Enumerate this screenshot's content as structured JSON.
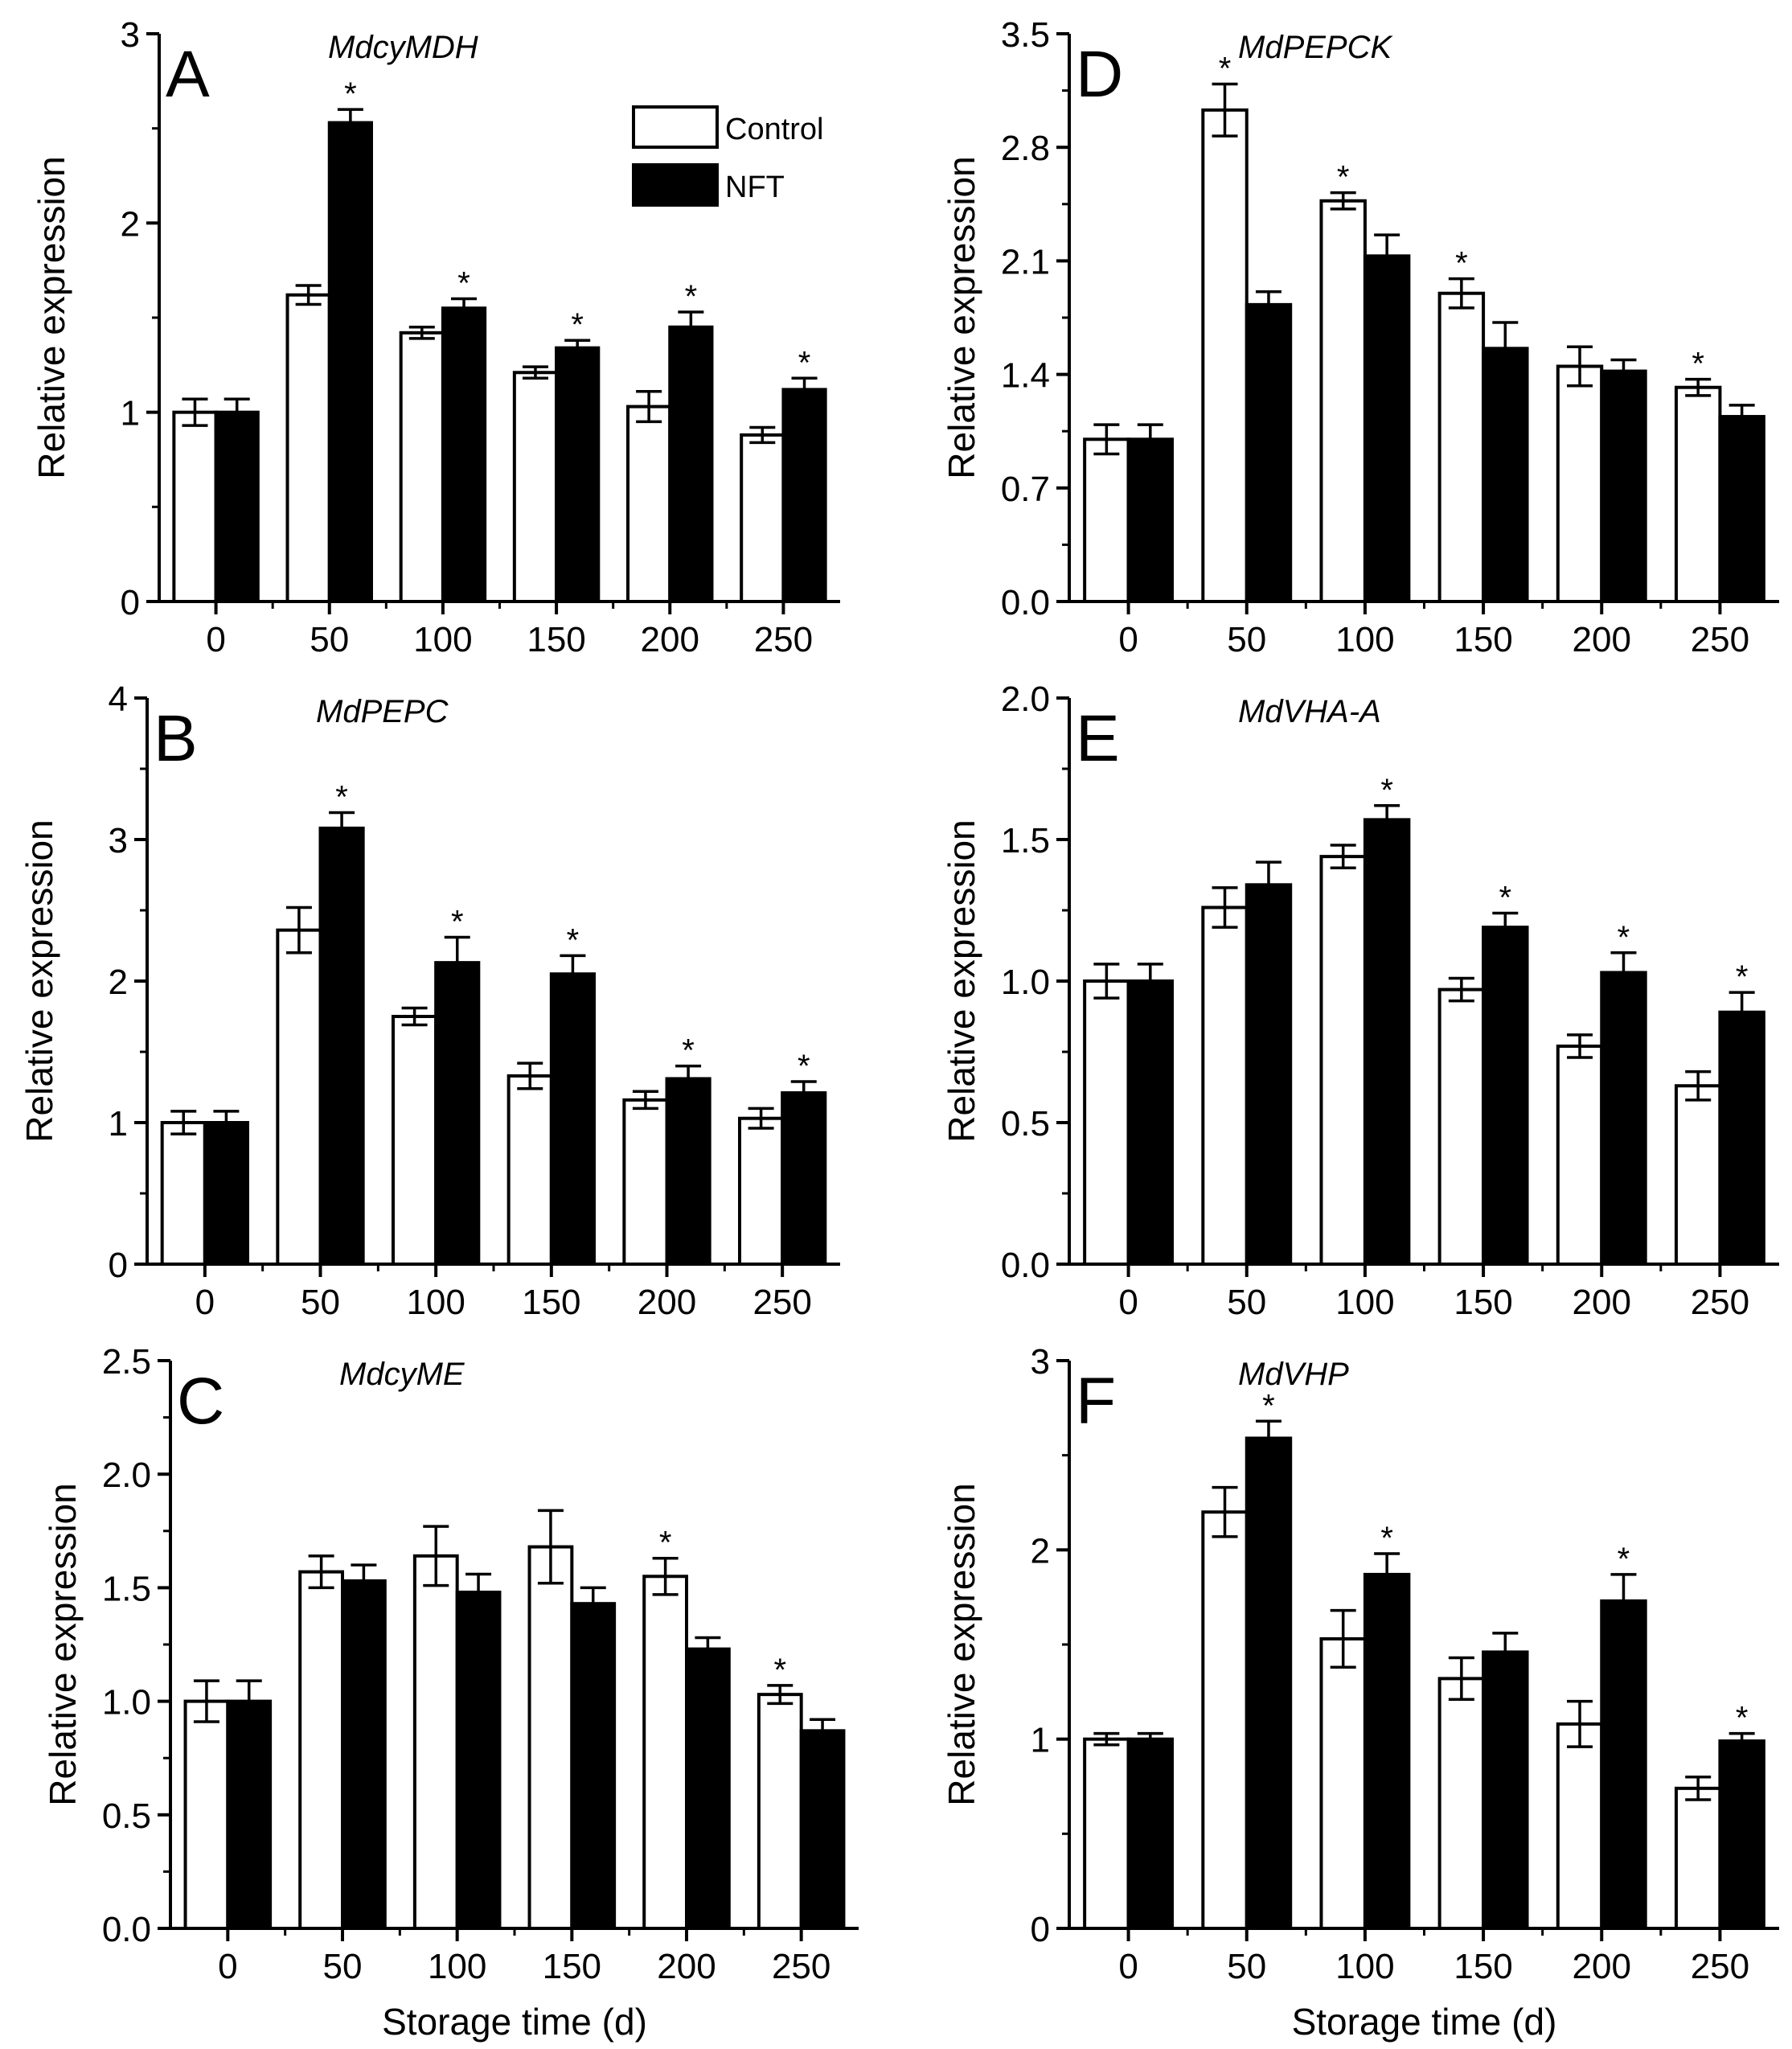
{
  "legend": {
    "control_label": "Control",
    "nft_label": "NFT"
  },
  "colors": {
    "control": "#ffffff",
    "nft": "#000000",
    "stroke": "#000000"
  },
  "chart_data": [
    {
      "type": "bar",
      "panel": "A",
      "title": "MdcyMDH",
      "xlabel": "",
      "ylabel": "Relative expression",
      "categories": [
        "0",
        "50",
        "100",
        "150",
        "200",
        "250"
      ],
      "ylim": [
        0,
        3
      ],
      "yticks": [
        "0",
        "1",
        "2",
        "3"
      ],
      "series": [
        {
          "name": "Control",
          "values": [
            1.0,
            1.62,
            1.42,
            1.21,
            1.03,
            0.88
          ],
          "errors": [
            0.07,
            0.05,
            0.03,
            0.03,
            0.08,
            0.04
          ],
          "significant": [
            false,
            false,
            false,
            false,
            false,
            false
          ]
        },
        {
          "name": "NFT",
          "values": [
            1.0,
            2.53,
            1.55,
            1.34,
            1.45,
            1.12
          ],
          "errors": [
            0.07,
            0.07,
            0.05,
            0.04,
            0.08,
            0.06
          ],
          "significant": [
            false,
            true,
            true,
            true,
            true,
            true
          ]
        }
      ]
    },
    {
      "type": "bar",
      "panel": "B",
      "title": "MdPEPC",
      "xlabel": "",
      "ylabel": "Relative expression",
      "categories": [
        "0",
        "50",
        "100",
        "150",
        "200",
        "250"
      ],
      "ylim": [
        0,
        4
      ],
      "yticks": [
        "0",
        "1",
        "2",
        "3",
        "4"
      ],
      "series": [
        {
          "name": "Control",
          "values": [
            1.0,
            2.36,
            1.75,
            1.33,
            1.16,
            1.03
          ],
          "errors": [
            0.08,
            0.16,
            0.06,
            0.09,
            0.06,
            0.07
          ],
          "significant": [
            false,
            false,
            false,
            false,
            false,
            false
          ]
        },
        {
          "name": "NFT",
          "values": [
            1.0,
            3.08,
            2.13,
            2.05,
            1.31,
            1.21
          ],
          "errors": [
            0.08,
            0.11,
            0.18,
            0.13,
            0.09,
            0.08
          ],
          "significant": [
            false,
            true,
            true,
            true,
            true,
            true
          ]
        }
      ]
    },
    {
      "type": "bar",
      "panel": "C",
      "title": "MdcyME",
      "xlabel": "Storage time (d)",
      "ylabel": "Relative expression",
      "categories": [
        "0",
        "50",
        "100",
        "150",
        "200",
        "250"
      ],
      "ylim": [
        0,
        2.5
      ],
      "yticks": [
        "0.0",
        "0.5",
        "1.0",
        "1.5",
        "2.0",
        "2.5"
      ],
      "series": [
        {
          "name": "Control",
          "values": [
            1.0,
            1.57,
            1.64,
            1.68,
            1.55,
            1.03
          ],
          "errors": [
            0.09,
            0.07,
            0.13,
            0.16,
            0.08,
            0.04
          ],
          "significant": [
            false,
            false,
            false,
            false,
            true,
            true
          ]
        },
        {
          "name": "NFT",
          "values": [
            1.0,
            1.53,
            1.48,
            1.43,
            1.23,
            0.87
          ],
          "errors": [
            0.09,
            0.07,
            0.08,
            0.07,
            0.05,
            0.05
          ],
          "significant": [
            false,
            false,
            false,
            false,
            false,
            false
          ]
        }
      ]
    },
    {
      "type": "bar",
      "panel": "D",
      "title": "MdPEPCK",
      "xlabel": "",
      "ylabel": "Relative expression",
      "categories": [
        "0",
        "50",
        "100",
        "150",
        "200",
        "250"
      ],
      "ylim": [
        0,
        3.5
      ],
      "yticks": [
        "0.0",
        "0.7",
        "1.4",
        "2.1",
        "2.8",
        "3.5"
      ],
      "series": [
        {
          "name": "Control",
          "values": [
            1.0,
            3.03,
            2.47,
            1.9,
            1.45,
            1.32
          ],
          "errors": [
            0.09,
            0.16,
            0.05,
            0.09,
            0.12,
            0.05
          ],
          "significant": [
            false,
            true,
            true,
            true,
            false,
            true
          ]
        },
        {
          "name": "NFT",
          "values": [
            1.0,
            1.83,
            2.13,
            1.56,
            1.42,
            1.14
          ],
          "errors": [
            0.09,
            0.08,
            0.13,
            0.16,
            0.07,
            0.07
          ],
          "significant": [
            false,
            false,
            false,
            false,
            false,
            false
          ]
        }
      ]
    },
    {
      "type": "bar",
      "panel": "E",
      "title": "MdVHA-A",
      "xlabel": "",
      "ylabel": "Relative expression",
      "categories": [
        "0",
        "50",
        "100",
        "150",
        "200",
        "250"
      ],
      "ylim": [
        0,
        2.0
      ],
      "yticks": [
        "0.0",
        "0.5",
        "1.0",
        "1.5",
        "2.0"
      ],
      "series": [
        {
          "name": "Control",
          "values": [
            1.0,
            1.26,
            1.44,
            0.97,
            0.77,
            0.63
          ],
          "errors": [
            0.06,
            0.07,
            0.04,
            0.04,
            0.04,
            0.05
          ],
          "significant": [
            false,
            false,
            false,
            false,
            false,
            false
          ]
        },
        {
          "name": "NFT",
          "values": [
            1.0,
            1.34,
            1.57,
            1.19,
            1.03,
            0.89
          ],
          "errors": [
            0.06,
            0.08,
            0.05,
            0.05,
            0.07,
            0.07
          ],
          "significant": [
            false,
            false,
            true,
            true,
            true,
            true
          ]
        }
      ]
    },
    {
      "type": "bar",
      "panel": "F",
      "title": "MdVHP",
      "xlabel": "Storage time (d)",
      "ylabel": "Relative expression",
      "categories": [
        "0",
        "50",
        "100",
        "150",
        "200",
        "250"
      ],
      "ylim": [
        0,
        3
      ],
      "yticks": [
        "0",
        "1",
        "2",
        "3"
      ],
      "series": [
        {
          "name": "Control",
          "values": [
            1.0,
            2.2,
            1.53,
            1.32,
            1.08,
            0.74
          ],
          "errors": [
            0.03,
            0.13,
            0.15,
            0.11,
            0.12,
            0.06
          ],
          "significant": [
            false,
            false,
            false,
            false,
            false,
            false
          ]
        },
        {
          "name": "NFT",
          "values": [
            1.0,
            2.59,
            1.87,
            1.46,
            1.73,
            0.99
          ],
          "errors": [
            0.03,
            0.09,
            0.11,
            0.1,
            0.14,
            0.04
          ],
          "significant": [
            false,
            true,
            true,
            false,
            true,
            true
          ]
        }
      ]
    }
  ]
}
